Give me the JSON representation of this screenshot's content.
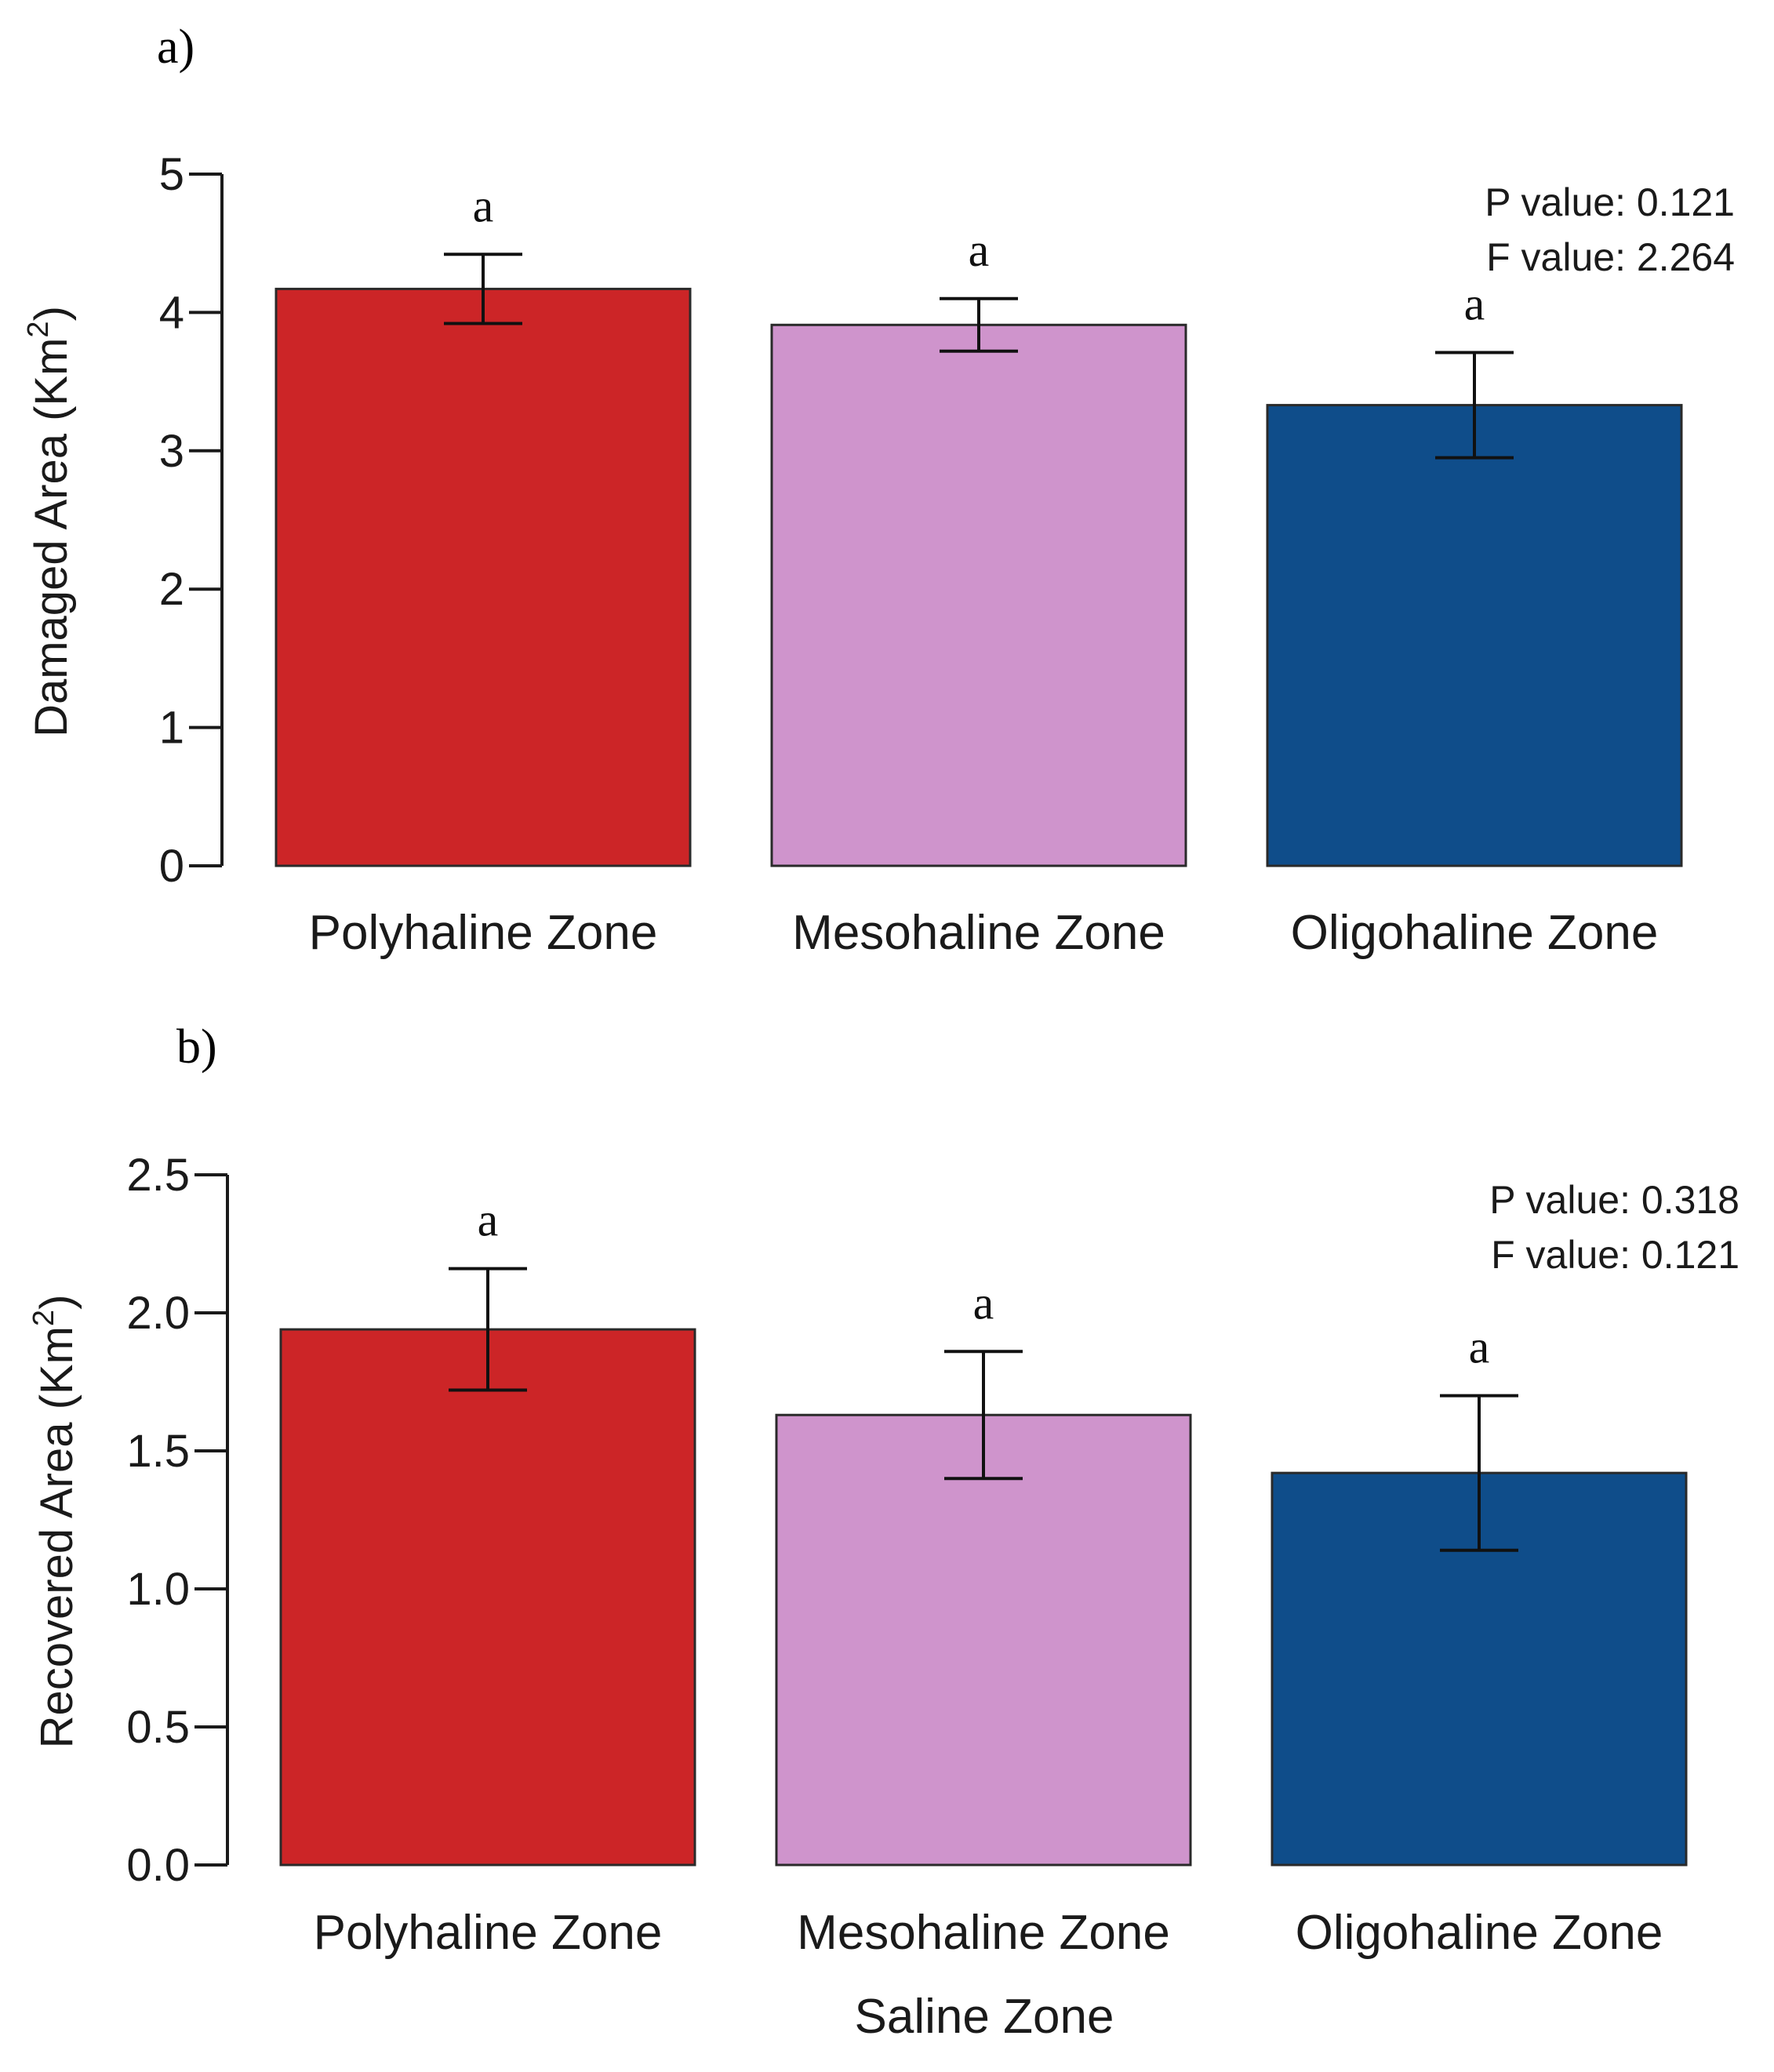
{
  "chart_data": [
    {
      "type": "bar",
      "panel_label": "a)",
      "categories": [
        "Polyhaline Zone",
        "Mesohaline Zone",
        "Oligohaline Zone"
      ],
      "values": [
        4.17,
        3.91,
        3.33
      ],
      "errors": [
        0.25,
        0.19,
        0.38
      ],
      "significance_letters": [
        "a",
        "a",
        "a"
      ],
      "colors": [
        "#cc2527",
        "#cf94cc",
        "#0f4d8a"
      ],
      "ylabel": "Damaged Area (Km",
      "ylabel_superscript": "2",
      "ylabel_close": ")",
      "ylim": [
        0,
        5
      ],
      "yticks": [
        0,
        1,
        2,
        3,
        4,
        5
      ],
      "ytick_labels": [
        "0",
        "1",
        "2",
        "3",
        "4",
        "5"
      ],
      "stats": [
        "P value: 0.121",
        "F value: 2.264"
      ],
      "xlabel": ""
    },
    {
      "type": "bar",
      "panel_label": "b)",
      "categories": [
        "Polyhaline Zone",
        "Mesohaline Zone",
        "Oligohaline Zone"
      ],
      "values": [
        1.94,
        1.63,
        1.42
      ],
      "errors": [
        0.22,
        0.23,
        0.28
      ],
      "significance_letters": [
        "a",
        "a",
        "a"
      ],
      "colors": [
        "#cc2527",
        "#cf94cc",
        "#0f4d8a"
      ],
      "ylabel": "Recovered Area (Km",
      "ylabel_superscript": "2",
      "ylabel_close": ")",
      "ylim": [
        0,
        2.5
      ],
      "yticks": [
        0,
        0.5,
        1.0,
        1.5,
        2.0,
        2.5
      ],
      "ytick_labels": [
        "0.0",
        "0.5",
        "1.0",
        "1.5",
        "2.0",
        "2.5"
      ],
      "stats": [
        "P value: 0.318",
        "F value: 0.121"
      ],
      "xlabel": "Saline Zone"
    }
  ]
}
